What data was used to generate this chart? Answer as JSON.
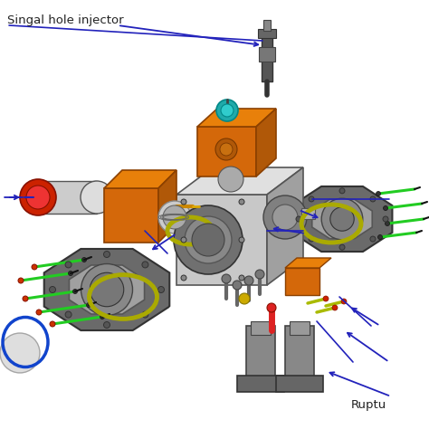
{
  "background_color": "#ffffff",
  "fig_width": 4.74,
  "fig_height": 4.74,
  "dpi": 100,
  "label_injector": "Singal hole injector",
  "label_rupture": "Ruptu",
  "text_color": "#222222",
  "arrow_color": "#2222bb",
  "label_fontsize": 9.5
}
